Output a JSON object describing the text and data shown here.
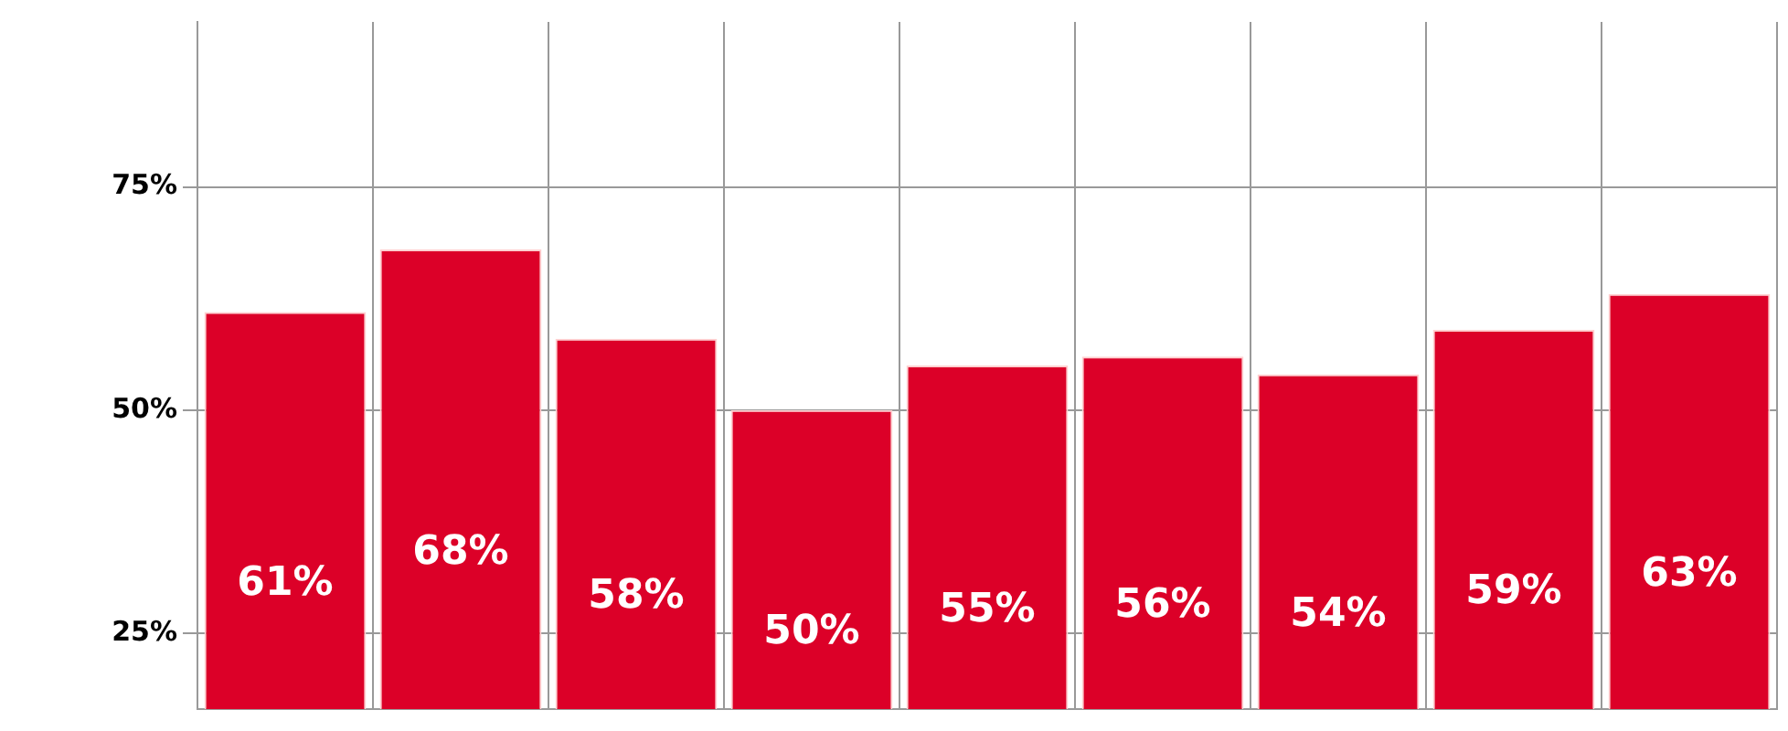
{
  "chart_data": {
    "type": "bar",
    "categories": [
      null,
      null,
      null,
      null,
      null,
      null,
      null,
      null,
      null
    ],
    "values": [
      61,
      68,
      58,
      50,
      55,
      56,
      54,
      59,
      63
    ],
    "value_labels": [
      "61%",
      "68%",
      "58%",
      "50%",
      "55%",
      "56%",
      "54%",
      "59%",
      "63%"
    ],
    "color": "#dc0028",
    "ylim": [
      16.5,
      93.5
    ],
    "yticks": [
      {
        "value": 25,
        "label": "25%"
      },
      {
        "value": 50,
        "label": "50%"
      },
      {
        "value": 75,
        "label": "75%"
      }
    ],
    "grid": true,
    "tick_labels": "y"
  }
}
